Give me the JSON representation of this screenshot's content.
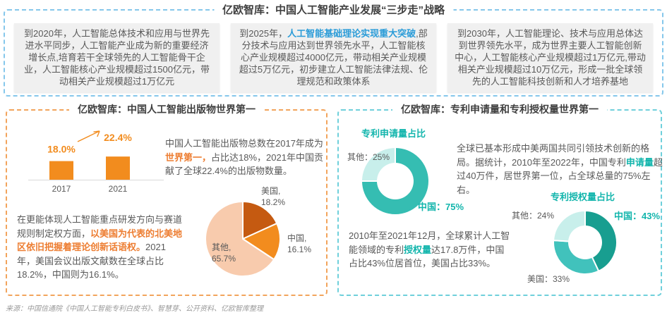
{
  "header": {
    "title": "亿欧智库：中国人工智能产业发展“三步走”战略"
  },
  "milestones": [
    {
      "before": "到2020年，人工智能总体技术和应用与世界先进水平同步，人工智能产业成为新的重要经济增长点,培育若干全球领先的人工智能骨干企业，人工智能核心产业规模超过1500亿元，带动相关产业规模超过1万亿元",
      "highlight": "",
      "after": ""
    },
    {
      "before": "到2025年，",
      "highlight": "人工智能基础理论实现重大突破",
      "after": ",部分技术与应用达到世界领先水平，人工智能核心产业规模超过4000亿元，带动相关产业规模超过5万亿元，初步建立人工智能法律法规、伦理规范和政策体系"
    },
    {
      "before": "到2030年，人工智能理论、技术与应用总体达到世界领先水平，成为世界主要人工智能创新中心，人工智能核心产业规模超过1万亿元,带动相关产业规模超过10万亿元，形成一批全球领先的人工智能科技创新和人才培养基地",
      "highlight": "",
      "after": ""
    }
  ],
  "publications": {
    "title": "亿欧智库：中国人工智能出版物世界第一",
    "summary": {
      "before": "中国人工智能出版物总数在2017年成为",
      "highlight": "世界第一，",
      "after": "占比达18%，2021年中国贡献了全球22.4%的出版物数量。"
    },
    "detail": {
      "before": "在更能体现人工智能重点研发方向与赛道规则制定权方面，",
      "highlight": "以美国为代表的北美地区依旧把握着理论创新话语权。",
      "after": "2021年，美国会议出版文献数在全球占比18.2%，中国则为16.1%。"
    }
  },
  "patents": {
    "title": "亿欧智库：专利申请量和专利授权量世界第一",
    "applications_text": {
      "before": "全球已基本形成中美两国共同引领技术创新的格局。据统计，2010年至2022年，中国专利",
      "highlight": "申请量",
      "after": "超过40万件，居世界第一位，占全球总量的75%左右。"
    },
    "grants_text": {
      "before": "2010年至2021年12月，全球累计人工智能领域的专利",
      "highlight": "授权量",
      "after": "达17.8万件，中国占比43%位居首位，美国占比33%。"
    }
  },
  "source": "来源：中国信通院《中国人工智能专利白皮书》、智慧芽、公开资料、亿欧智库整理",
  "colors": {
    "blue_dash": "#85C7EB",
    "orange_dash": "#F2A45C",
    "teal_dash": "#6FD0DB",
    "blue_highlight": "#2B9CD8",
    "orange_highlight": "#ED7D31",
    "teal_highlight": "#12B5AC",
    "box_bg": "#F0F0F0"
  },
  "chart_data": [
    {
      "id": "publications_bar",
      "type": "bar",
      "categories": [
        "2017",
        "2021"
      ],
      "values": [
        18.0,
        22.4
      ],
      "value_labels": [
        "18.0%",
        "22.4%"
      ],
      "bar_color": "#F28C1E",
      "ylim": [
        0,
        45
      ],
      "grid": false,
      "trend_arrow": true,
      "label_raise": [
        12,
        22
      ]
    },
    {
      "id": "publications_pie",
      "type": "pie",
      "slices": [
        {
          "name": "美国",
          "value": 18.2,
          "label": "美国,\n18.2%",
          "color": "#C55A11"
        },
        {
          "name": "中国",
          "value": 16.1,
          "label": "中国,\n16.1%",
          "color": "#F28C1E"
        },
        {
          "name": "其他",
          "value": 65.7,
          "label": "其他,\n65.7%",
          "color": "#F8CBAD"
        }
      ]
    },
    {
      "id": "patent_applications_donut",
      "type": "donut",
      "title": "专利申请量占比",
      "slices": [
        {
          "name": "中国",
          "value": 75,
          "label": "中国：75%",
          "color": "#35BDB2"
        },
        {
          "name": "其他",
          "value": 25,
          "label": "其他：25%",
          "color": "#C8EFEB"
        }
      ]
    },
    {
      "id": "patent_grants_donut",
      "type": "donut",
      "title": "专利授权量占比",
      "slices": [
        {
          "name": "中国",
          "value": 43,
          "label": "中国：43%",
          "color": "#189E90"
        },
        {
          "name": "美国",
          "value": 33,
          "label": "美国：33%",
          "color": "#41C2BC"
        },
        {
          "name": "其他",
          "value": 24,
          "label": "其他：24%",
          "color": "#C8EFEB"
        }
      ]
    }
  ]
}
